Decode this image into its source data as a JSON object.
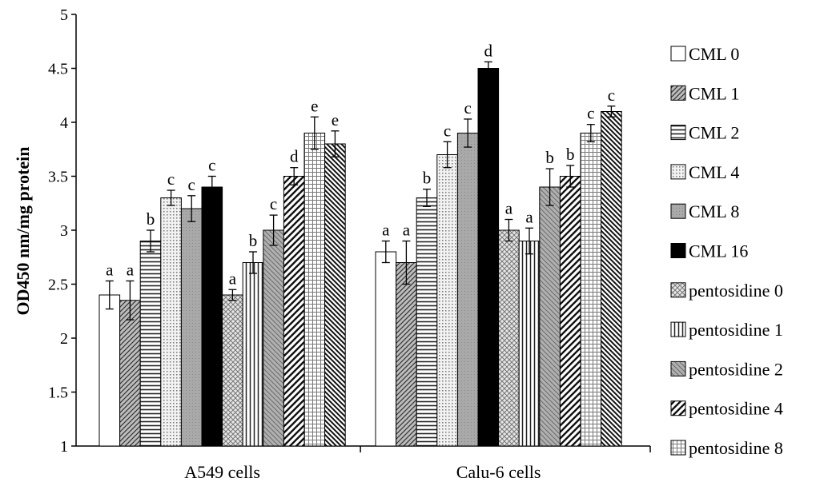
{
  "chart_data": {
    "type": "bar",
    "title": "",
    "xlabel": "",
    "ylabel": "OD450 nm/mg protein",
    "ylim": [
      1,
      5
    ],
    "yticks": [
      "1",
      "1.5",
      "2",
      "2.5",
      "3",
      "3.5",
      "4",
      "4.5",
      "5"
    ],
    "ytick_values": [
      1,
      1.5,
      2,
      2.5,
      3,
      3.5,
      4,
      4.5,
      5
    ],
    "grid": false,
    "legend_position": "right",
    "categories": [
      "A549 cells",
      "Calu-6 cells"
    ],
    "series": [
      {
        "name": "CML 0",
        "values": [
          2.4,
          2.8
        ],
        "errors": [
          0.13,
          0.1
        ],
        "labels": [
          "a",
          "a"
        ],
        "pattern": "white"
      },
      {
        "name": "CML 1",
        "values": [
          2.35,
          2.7
        ],
        "errors": [
          0.18,
          0.2
        ],
        "labels": [
          "a",
          "a"
        ],
        "pattern": "diag-fine"
      },
      {
        "name": "CML 2",
        "values": [
          2.9,
          3.3
        ],
        "errors": [
          0.1,
          0.08
        ],
        "labels": [
          "b",
          "b"
        ],
        "pattern": "horiz"
      },
      {
        "name": "CML 4",
        "values": [
          3.3,
          3.7
        ],
        "errors": [
          0.07,
          0.12
        ],
        "labels": [
          "c",
          "c"
        ],
        "pattern": "dots"
      },
      {
        "name": "CML 8",
        "values": [
          3.2,
          3.9
        ],
        "errors": [
          0.12,
          0.13
        ],
        "labels": [
          "c",
          "c"
        ],
        "pattern": "gray"
      },
      {
        "name": "CML 16",
        "values": [
          3.4,
          4.5
        ],
        "errors": [
          0.1,
          0.06
        ],
        "labels": [
          "c",
          "d"
        ],
        "pattern": "black"
      },
      {
        "name": "pentosidine 0",
        "values": [
          2.4,
          3.0
        ],
        "errors": [
          0.05,
          0.1
        ],
        "labels": [
          "a",
          "a"
        ],
        "pattern": "cross"
      },
      {
        "name": "pentosidine 1",
        "values": [
          2.7,
          2.9
        ],
        "errors": [
          0.1,
          0.12
        ],
        "labels": [
          "b",
          "a"
        ],
        "pattern": "vert"
      },
      {
        "name": "pentosidine 2",
        "values": [
          3.0,
          3.4
        ],
        "errors": [
          0.14,
          0.17
        ],
        "labels": [
          "c",
          "b"
        ],
        "pattern": "gray-diag"
      },
      {
        "name": "pentosidine 4",
        "values": [
          3.5,
          3.5
        ],
        "errors": [
          0.08,
          0.1
        ],
        "labels": [
          "d",
          "b"
        ],
        "pattern": "diag-wide"
      },
      {
        "name": "pentosidine 8",
        "values": [
          3.9,
          3.9
        ],
        "errors": [
          0.15,
          0.08
        ],
        "labels": [
          "e",
          "c"
        ],
        "pattern": "grid"
      },
      {
        "name": "",
        "values": [
          3.8,
          4.1
        ],
        "errors": [
          0.12,
          0.05
        ],
        "labels": [
          "e",
          "c"
        ],
        "pattern": "diag-bold"
      }
    ]
  }
}
